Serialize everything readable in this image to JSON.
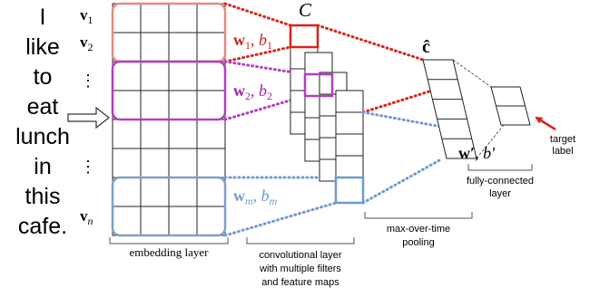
{
  "words": [
    "I",
    "like",
    "to",
    "eat",
    "lunch",
    "in",
    "this",
    "cafe."
  ],
  "row_labels": {
    "v1": {
      "base": "v",
      "sub": "1"
    },
    "v2": {
      "base": "v",
      "sub": "2"
    },
    "dots_top": "⋮",
    "dots_bottom": "⋮",
    "vn": {
      "base": "v",
      "sub": "n"
    }
  },
  "filters": [
    {
      "w": "w",
      "w_sub": "1",
      "sep": ", ",
      "b": "b",
      "b_sub": "1",
      "color": "#c8261d"
    },
    {
      "w": "w",
      "w_sub": "2",
      "sep": ", ",
      "b": "b",
      "b_sub": "2",
      "color": "#a020a8"
    },
    {
      "w": "w",
      "w_sub": "m",
      "sep": ", ",
      "b": "b",
      "b_sub": "m",
      "color": "#6f9ad0"
    }
  ],
  "box_colors": {
    "filter1": "#e58a80",
    "filter2": "#b23fc0",
    "filterm": "#7f9fc8"
  },
  "conv_label": "C",
  "c_hat_label": "ĉ",
  "fc_weights": {
    "w": "w′",
    "sep": ", ",
    "b": "b′"
  },
  "target_label": [
    "target",
    "label"
  ],
  "captions": {
    "embedding": "embedding layer",
    "conv": [
      "convolutional layer",
      "with multiple filters",
      "and feature maps"
    ],
    "pooling": [
      "max-over-time",
      "pooling"
    ],
    "fc": [
      "fully-connected",
      "layer"
    ]
  }
}
